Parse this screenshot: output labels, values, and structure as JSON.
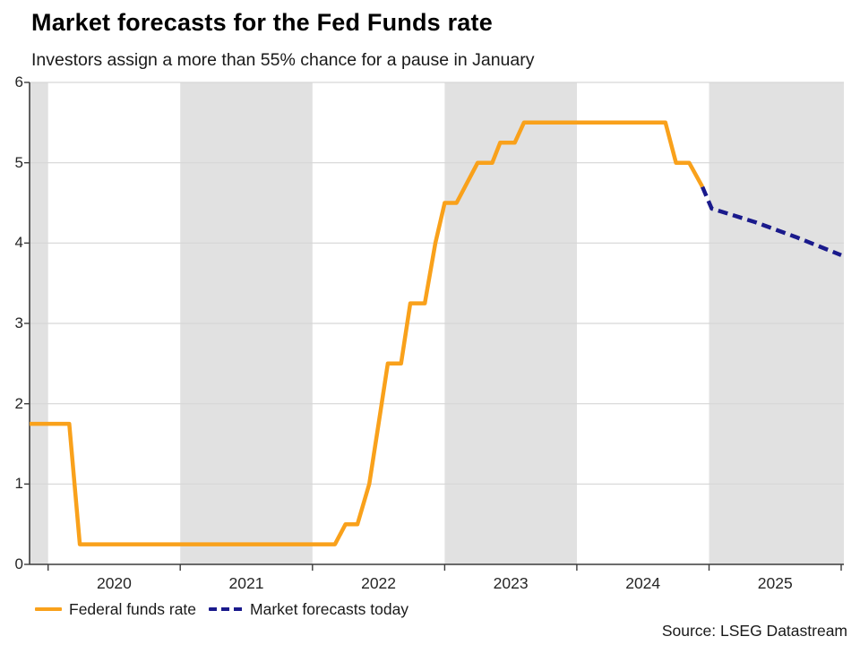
{
  "chart_data": {
    "type": "line",
    "title": "Market forecasts for the Fed Funds rate",
    "subtitle": "Investors assign a more than 55% chance for a pause in January",
    "source": "Source: LSEG Datastream",
    "xlabel": "",
    "ylabel": "",
    "xlim": [
      2019.86,
      2026.02
    ],
    "ylim": [
      0,
      6
    ],
    "y_ticks": [
      0,
      1,
      2,
      3,
      4,
      5,
      6
    ],
    "x_year_ticks": [
      2020,
      2021,
      2022,
      2023,
      2024,
      2025,
      2026
    ],
    "x_year_labels": [
      "2020",
      "2021",
      "2022",
      "2023",
      "2024",
      "2025"
    ],
    "grid": true,
    "legend_position": "bottom-left",
    "shaded_bands_years": [
      [
        2019.86,
        2020
      ],
      [
        2021,
        2022
      ],
      [
        2023,
        2024
      ],
      [
        2025,
        2026.02
      ]
    ],
    "colors": {
      "band": "#E1E1E1",
      "gridline": "#D6D6D6",
      "axis": "#3C3C3C",
      "text": "#262626"
    },
    "series": [
      {
        "name": "Federal funds rate",
        "color": "#F9A11B",
        "line_style": "solid",
        "points": [
          [
            2019.86,
            1.75
          ],
          [
            2020.16,
            1.75
          ],
          [
            2020.24,
            0.25
          ],
          [
            2022.17,
            0.25
          ],
          [
            2022.25,
            0.5
          ],
          [
            2022.34,
            0.5
          ],
          [
            2022.43,
            1.0
          ],
          [
            2022.5,
            1.75
          ],
          [
            2022.57,
            2.5
          ],
          [
            2022.67,
            2.5
          ],
          [
            2022.74,
            3.25
          ],
          [
            2022.85,
            3.25
          ],
          [
            2022.93,
            4.0
          ],
          [
            2023.0,
            4.5
          ],
          [
            2023.09,
            4.5
          ],
          [
            2023.25,
            5.0
          ],
          [
            2023.36,
            5.0
          ],
          [
            2023.42,
            5.25
          ],
          [
            2023.53,
            5.25
          ],
          [
            2023.6,
            5.5
          ],
          [
            2024.67,
            5.5
          ],
          [
            2024.75,
            5.0
          ],
          [
            2024.85,
            5.0
          ],
          [
            2024.95,
            4.7
          ]
        ]
      },
      {
        "name": "Market forecasts today",
        "color": "#1A1A8C",
        "line_style": "dashed",
        "points": [
          [
            2024.95,
            4.7
          ],
          [
            2025.02,
            4.43
          ],
          [
            2025.35,
            4.26
          ],
          [
            2025.65,
            4.08
          ],
          [
            2026.0,
            3.85
          ]
        ]
      }
    ]
  }
}
